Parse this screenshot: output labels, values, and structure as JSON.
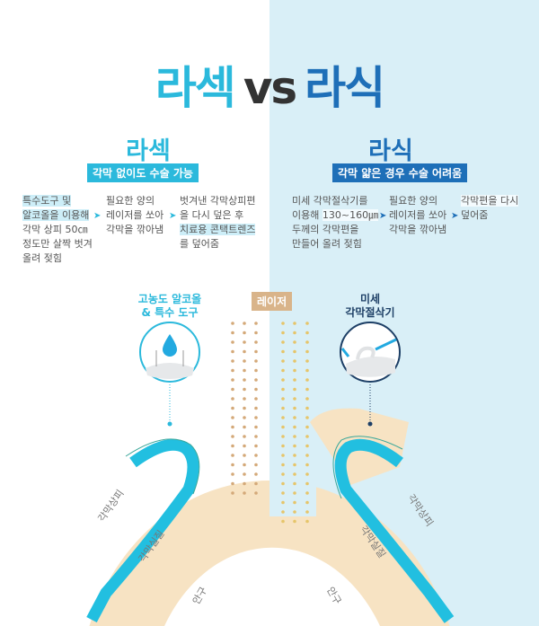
{
  "title": {
    "left": "라섹",
    "vs": "vs",
    "right": "라식"
  },
  "lasek": {
    "heading": "라섹",
    "badge": "각막 없이도 수술 가능",
    "steps": [
      {
        "hl": "특수도구 및\n알코올을 이용해",
        "rest": "\n각막 상피 50㎝\n정도만 살짝 벗겨\n올려 젖힘"
      },
      {
        "pre": "필요한 양의\n레이저를 쏘아\n각막을 깎아냄"
      },
      {
        "pre": "벗겨낸 각막상피편\n을 다시 덮은 후\n",
        "hl": "치료용 콘택트렌즈",
        "rest": "\n를 덮어줌"
      }
    ],
    "tool_label": "고농도 알코올\n& 특수 도구"
  },
  "lasik": {
    "heading": "라식",
    "badge": "각막 얇은 경우 수술 어려움",
    "steps": [
      {
        "pre": "미세 각막절삭기를\n이용해 ",
        "hl": "130~160㎛",
        "rest": "\n두께의 각막편을\n만들어 올려 젖힘"
      },
      {
        "pre": "필요한 양의\n레이저를 쏘아\n각막을 깎아냄"
      },
      {
        "hl": "각막편을 다시",
        "rest": "\n덮어줌"
      }
    ],
    "tool_label": "미세\n각막절삭기"
  },
  "laser_label": "레이저",
  "arrow": "➤",
  "labels": {
    "epithelium": "각막상피",
    "stroma": "각막실질",
    "eyeball": "안구"
  },
  "colors": {
    "lasek": "#2bb9dc",
    "lasik": "#1e6fb8",
    "lasik_dark": "#1d3f66",
    "laser": "#d9b48a",
    "stroma": "#f7e3c3",
    "right_bg": "#d9eff7"
  }
}
